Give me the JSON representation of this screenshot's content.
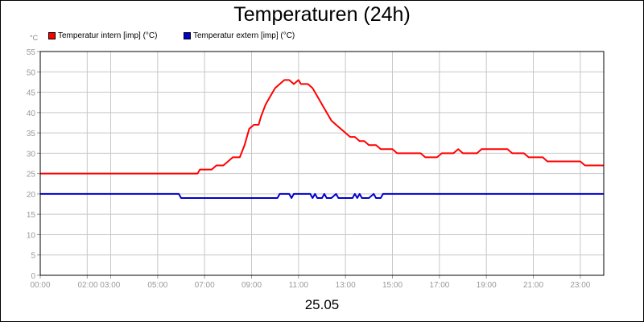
{
  "chart_data": {
    "type": "line",
    "title": "Temperaturen (24h)",
    "xlabel": "25.05",
    "ylabel": "°C",
    "ylim": [
      0,
      55
    ],
    "yticks": [
      0,
      5,
      10,
      15,
      20,
      25,
      30,
      35,
      40,
      45,
      50,
      55
    ],
    "xlim": [
      0,
      24
    ],
    "xtick_labels": [
      "00:00",
      "02:00 03:00",
      "05:00",
      "07:00",
      "09:00",
      "11:00",
      "13:00",
      "15:00",
      "17:00",
      "19:00",
      "21:00",
      "23:00"
    ],
    "xtick_values": [
      0,
      2.5,
      5,
      7,
      9,
      11,
      13,
      15,
      17,
      19,
      21,
      23
    ],
    "xgrid_values": [
      0,
      2,
      3,
      5,
      7,
      9,
      11,
      13,
      15,
      17,
      19,
      21,
      23
    ],
    "grid": true,
    "legend_position": "top-left",
    "series": [
      {
        "name": "Temperatur intern [imp] (°C)",
        "color": "#ff0000",
        "points": [
          [
            0.0,
            25
          ],
          [
            6.7,
            25
          ],
          [
            6.8,
            26
          ],
          [
            7.3,
            26
          ],
          [
            7.5,
            27
          ],
          [
            7.8,
            27
          ],
          [
            8.0,
            28
          ],
          [
            8.2,
            29
          ],
          [
            8.5,
            29
          ],
          [
            8.7,
            32
          ],
          [
            8.9,
            36
          ],
          [
            9.1,
            37
          ],
          [
            9.3,
            37
          ],
          [
            9.4,
            39
          ],
          [
            9.6,
            42
          ],
          [
            9.8,
            44
          ],
          [
            10.0,
            46
          ],
          [
            10.2,
            47
          ],
          [
            10.4,
            48
          ],
          [
            10.6,
            48
          ],
          [
            10.8,
            47
          ],
          [
            11.0,
            48
          ],
          [
            11.1,
            47
          ],
          [
            11.4,
            47
          ],
          [
            11.6,
            46
          ],
          [
            11.8,
            44
          ],
          [
            12.0,
            42
          ],
          [
            12.2,
            40
          ],
          [
            12.4,
            38
          ],
          [
            12.6,
            37
          ],
          [
            12.8,
            36
          ],
          [
            13.0,
            35
          ],
          [
            13.2,
            34
          ],
          [
            13.4,
            34
          ],
          [
            13.6,
            33
          ],
          [
            13.8,
            33
          ],
          [
            14.0,
            32
          ],
          [
            14.3,
            32
          ],
          [
            14.5,
            31
          ],
          [
            15.0,
            31
          ],
          [
            15.2,
            30
          ],
          [
            16.2,
            30
          ],
          [
            16.4,
            29
          ],
          [
            16.9,
            29
          ],
          [
            17.1,
            30
          ],
          [
            17.6,
            30
          ],
          [
            17.8,
            31
          ],
          [
            18.0,
            30
          ],
          [
            18.6,
            30
          ],
          [
            18.8,
            31
          ],
          [
            19.9,
            31
          ],
          [
            20.1,
            30
          ],
          [
            20.6,
            30
          ],
          [
            20.8,
            29
          ],
          [
            21.4,
            29
          ],
          [
            21.6,
            28
          ],
          [
            23.0,
            28
          ],
          [
            23.2,
            27
          ],
          [
            24.0,
            27
          ]
        ]
      },
      {
        "name": "Temperatur extern [imp] (°C)",
        "color": "#0000cc",
        "points": [
          [
            0.0,
            20
          ],
          [
            5.9,
            20
          ],
          [
            6.0,
            19
          ],
          [
            10.1,
            19
          ],
          [
            10.2,
            20
          ],
          [
            10.6,
            20
          ],
          [
            10.7,
            19
          ],
          [
            10.8,
            20
          ],
          [
            11.5,
            20
          ],
          [
            11.6,
            19
          ],
          [
            11.7,
            20
          ],
          [
            11.8,
            19
          ],
          [
            12.0,
            19
          ],
          [
            12.1,
            20
          ],
          [
            12.2,
            19
          ],
          [
            12.4,
            19
          ],
          [
            12.6,
            20
          ],
          [
            12.7,
            19
          ],
          [
            13.3,
            19
          ],
          [
            13.4,
            20
          ],
          [
            13.5,
            19
          ],
          [
            13.6,
            20
          ],
          [
            13.7,
            19
          ],
          [
            14.0,
            19
          ],
          [
            14.2,
            20
          ],
          [
            14.3,
            19
          ],
          [
            14.5,
            19
          ],
          [
            14.6,
            20
          ],
          [
            24.0,
            20
          ]
        ]
      }
    ]
  }
}
